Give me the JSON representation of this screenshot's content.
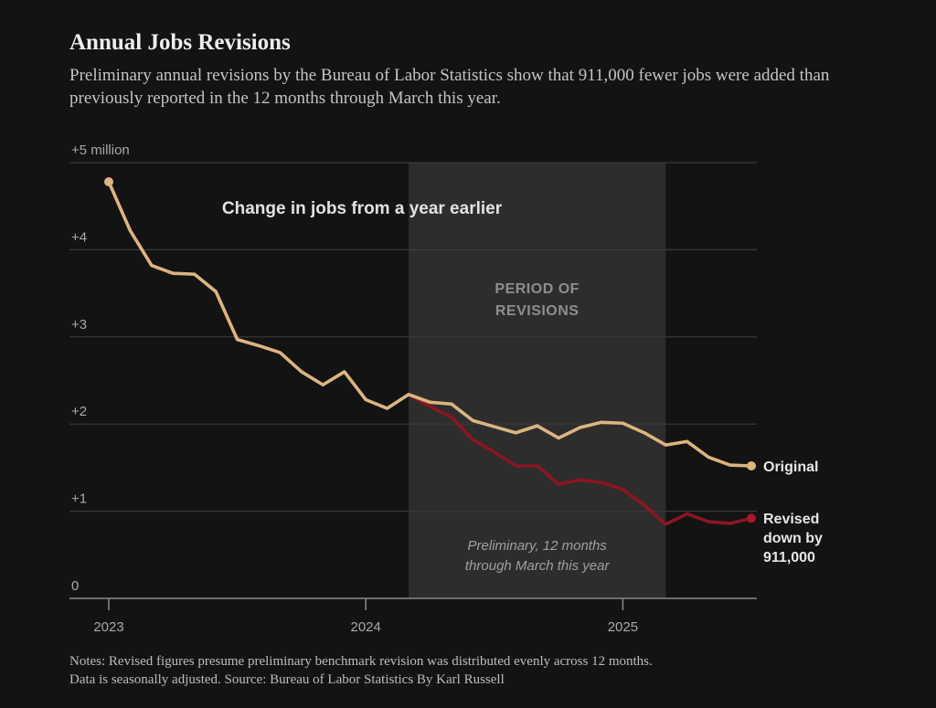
{
  "header": {
    "title": "Annual Jobs Revisions",
    "subtitle": "Preliminary annual revisions by the Bureau of Labor Statistics show that 911,000 fewer jobs were added than previously reported in the 12 months through March this year."
  },
  "notes": {
    "line1": "Notes: Revised figures presume preliminary benchmark revision was distributed evenly across 12 months.",
    "line2": "Data is seasonally adjusted.  Source: Bureau of Labor Statistics  By Karl Russell"
  },
  "colors": {
    "background": "#131313",
    "original": "#dcb57f",
    "revised": "#8c1522",
    "revised_marker": "#a8182a",
    "revision_band": "#2d2d2d",
    "grid": "#3a3a3a",
    "axis": "#8a8a8a"
  },
  "chart_data": {
    "type": "line",
    "title": "Change in jobs from a year earlier",
    "ylabel": "",
    "xlabel": "",
    "ylim": [
      0,
      5
    ],
    "y_unit": "million",
    "yticks": [
      0,
      1,
      2,
      3,
      4,
      5
    ],
    "ytick_labels": [
      "0",
      "+1",
      "+2",
      "+3",
      "+4",
      "+5 million"
    ],
    "x_start": "2023-01",
    "x_end": "2025-07",
    "xticks": [
      {
        "date": "2023-01",
        "label": "2023"
      },
      {
        "date": "2024-01",
        "label": "2024"
      },
      {
        "date": "2025-01",
        "label": "2025"
      }
    ],
    "grid": true,
    "series": [
      {
        "name": "Original",
        "end_label": "Original",
        "dates": [
          "2023-01",
          "2023-02",
          "2023-03",
          "2023-04",
          "2023-05",
          "2023-06",
          "2023-07",
          "2023-08",
          "2023-09",
          "2023-10",
          "2023-11",
          "2023-12",
          "2024-01",
          "2024-02",
          "2024-03",
          "2024-04",
          "2024-05",
          "2024-06",
          "2024-07",
          "2024-08",
          "2024-09",
          "2024-10",
          "2024-11",
          "2024-12",
          "2025-01",
          "2025-02",
          "2025-03",
          "2025-04",
          "2025-05",
          "2025-06",
          "2025-07"
        ],
        "values": [
          4.78,
          4.22,
          3.82,
          3.73,
          3.72,
          3.52,
          2.97,
          2.9,
          2.82,
          2.6,
          2.45,
          2.6,
          2.28,
          2.18,
          2.34,
          2.25,
          2.23,
          2.04,
          1.97,
          1.9,
          1.98,
          1.84,
          1.96,
          2.02,
          2.01,
          1.9,
          1.76,
          1.8,
          1.62,
          1.53,
          1.52
        ]
      },
      {
        "name": "Revised",
        "end_label": [
          "Revised",
          "down by",
          "911,000"
        ],
        "dates": [
          "2024-03",
          "2024-04",
          "2024-05",
          "2024-06",
          "2024-07",
          "2024-08",
          "2024-09",
          "2024-10",
          "2024-11",
          "2024-12",
          "2025-01",
          "2025-02",
          "2025-03",
          "2025-04",
          "2025-05",
          "2025-06",
          "2025-07"
        ],
        "values": [
          2.34,
          2.2,
          2.08,
          1.82,
          1.68,
          1.52,
          1.52,
          1.31,
          1.36,
          1.33,
          1.25,
          1.07,
          0.85,
          0.97,
          0.88,
          0.86,
          0.92
        ]
      }
    ],
    "annotations": {
      "revision_period": {
        "start": "2024-03",
        "end": "2025-03",
        "label": [
          "PERIOD OF",
          "REVISIONS"
        ]
      },
      "preliminary_note": [
        "Preliminary, 12 months",
        "through March this year"
      ]
    }
  }
}
